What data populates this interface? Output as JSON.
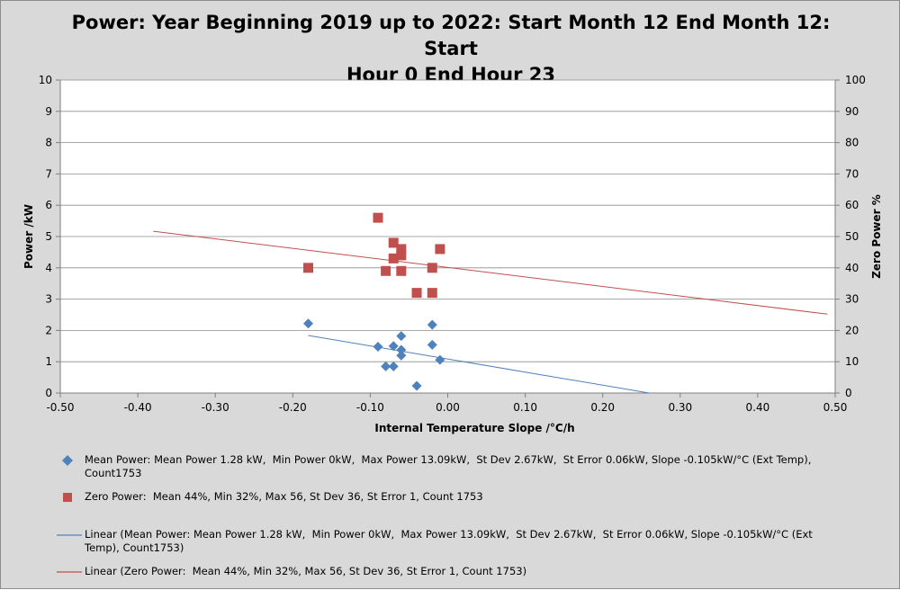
{
  "chart_data": {
    "type": "scatter",
    "title": "Power: Year Beginning 2019 up to 2022: Start Month 12 End Month 12: Start Hour 0 End Hour 23",
    "title_lines": [
      "Power: Year Beginning 2019 up to 2022: Start Month 12 End Month 12: Start",
      "Hour 0 End Hour 23"
    ],
    "xlabel": "Internal Temperature Slope /°C/h",
    "ylabel": "Power /kW",
    "y2label": "Zero Power %",
    "xlim": [
      -0.5,
      0.5
    ],
    "ylim": [
      0,
      10
    ],
    "y2lim": [
      0,
      100
    ],
    "x_ticks": [
      "-0.50",
      "-0.40",
      "-0.30",
      "-0.20",
      "-0.10",
      "0.00",
      "0.10",
      "0.20",
      "0.30",
      "0.40",
      "0.50"
    ],
    "y_ticks": [
      "0",
      "1",
      "2",
      "3",
      "4",
      "5",
      "6",
      "7",
      "8",
      "9",
      "10"
    ],
    "y2_ticks": [
      "0",
      "10",
      "20",
      "30",
      "40",
      "50",
      "60",
      "70",
      "80",
      "90",
      "100"
    ],
    "grid": "horizontal",
    "legend_position": "bottom",
    "series": [
      {
        "name": "Mean Power: Mean Power 1.28 kW,  Min Power 0kW,  Max Power 13.09kW,  St Dev 2.67kW,  St Error 0.06kW, Slope -0.105kW/°C (Ext Temp), Count1753",
        "axis": "left",
        "marker": "diamond",
        "color": "#4f81bd",
        "points": [
          {
            "x": -0.18,
            "y": 2.22
          },
          {
            "x": -0.09,
            "y": 1.48
          },
          {
            "x": -0.08,
            "y": 0.85
          },
          {
            "x": -0.07,
            "y": 1.5
          },
          {
            "x": -0.07,
            "y": 0.85
          },
          {
            "x": -0.06,
            "y": 1.82
          },
          {
            "x": -0.06,
            "y": 1.38
          },
          {
            "x": -0.06,
            "y": 1.2
          },
          {
            "x": -0.04,
            "y": 0.23
          },
          {
            "x": -0.02,
            "y": 2.18
          },
          {
            "x": -0.02,
            "y": 1.54
          },
          {
            "x": -0.01,
            "y": 1.06
          }
        ]
      },
      {
        "name": "Zero Power:  Mean 44%, Min 32%, Max 56, St Dev 36, St Error 1, Count 1753",
        "axis": "right",
        "marker": "square",
        "color": "#c0504d",
        "points": [
          {
            "x": -0.18,
            "y": 40
          },
          {
            "x": -0.09,
            "y": 56
          },
          {
            "x": -0.08,
            "y": 39
          },
          {
            "x": -0.07,
            "y": 48
          },
          {
            "x": -0.07,
            "y": 43
          },
          {
            "x": -0.06,
            "y": 46
          },
          {
            "x": -0.06,
            "y": 44
          },
          {
            "x": -0.06,
            "y": 39
          },
          {
            "x": -0.04,
            "y": 32
          },
          {
            "x": -0.02,
            "y": 40
          },
          {
            "x": -0.02,
            "y": 32
          },
          {
            "x": -0.01,
            "y": 46
          }
        ]
      }
    ],
    "trendlines": [
      {
        "name": "Linear (Mean Power: Mean Power 1.28 kW,  Min Power 0kW,  Max Power 13.09kW,  St Dev 2.67kW,  St Error 0.06kW, Slope -0.105kW/°C (Ext Temp), Count1753)",
        "axis": "left",
        "color": "#4f81bd",
        "x": [
          -0.18,
          0.26
        ],
        "y": [
          1.84,
          0.0
        ]
      },
      {
        "name": "Linear (Zero Power:  Mean 44%, Min 32%, Max 56, St Dev 36, St Error 1, Count 1753)",
        "axis": "right",
        "color": "#c0504d",
        "x": [
          -0.38,
          0.49
        ],
        "y": [
          51.7,
          25.2
        ]
      }
    ]
  }
}
